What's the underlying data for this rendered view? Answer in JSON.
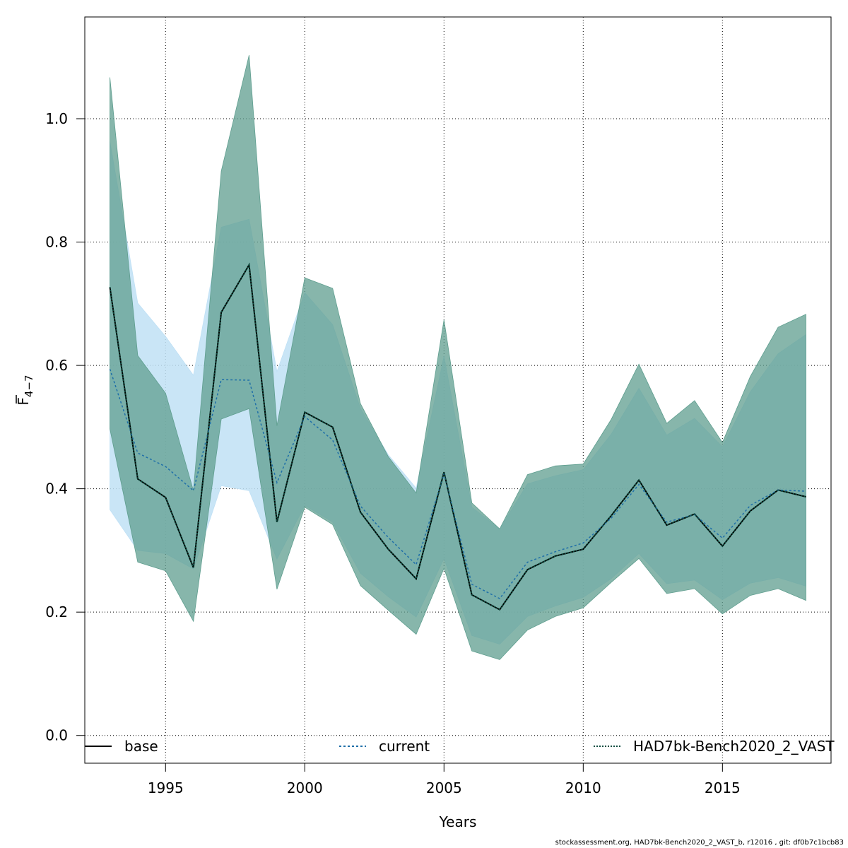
{
  "chart_data": {
    "type": "line",
    "xlabel": "Years",
    "ylabel_main": "F",
    "ylabel_sub": "4−7",
    "xlim": [
      1992.1,
      2018.9
    ],
    "ylim": [
      -0.045,
      1.165
    ],
    "xticks": [
      1995,
      2000,
      2005,
      2010,
      2015
    ],
    "yticks": [
      0.0,
      0.2,
      0.4,
      0.6,
      0.8,
      1.0
    ],
    "ytick_labels": [
      "0.0",
      "0.2",
      "0.4",
      "0.6",
      "0.8",
      "1.0"
    ],
    "grid": true,
    "legend_position": "bottom",
    "x": [
      1993,
      1994,
      1995,
      1996,
      1997,
      1998,
      1999,
      2000,
      2001,
      2002,
      2003,
      2004,
      2005,
      2006,
      2007,
      2008,
      2009,
      2010,
      2011,
      2012,
      2013,
      2014,
      2015,
      2016,
      2017,
      2018
    ],
    "series": [
      {
        "name": "base",
        "color": "#000000",
        "fill": "#5f9e8f",
        "values": [
          0.727,
          0.416,
          0.386,
          0.272,
          0.686,
          0.763,
          0.346,
          0.524,
          0.5,
          0.362,
          0.302,
          0.254,
          0.427,
          0.228,
          0.204,
          0.269,
          0.291,
          0.302,
          0.356,
          0.414,
          0.341,
          0.359,
          0.307,
          0.364,
          0.398,
          0.387
        ],
        "lower": [
          0.497,
          0.281,
          0.267,
          0.185,
          0.513,
          0.53,
          0.237,
          0.37,
          0.342,
          0.243,
          0.203,
          0.164,
          0.271,
          0.137,
          0.123,
          0.171,
          0.193,
          0.207,
          0.248,
          0.287,
          0.23,
          0.238,
          0.197,
          0.227,
          0.238,
          0.219
        ],
        "upper": [
          1.067,
          0.616,
          0.555,
          0.397,
          0.915,
          1.103,
          0.502,
          0.742,
          0.725,
          0.538,
          0.452,
          0.393,
          0.674,
          0.377,
          0.335,
          0.423,
          0.437,
          0.44,
          0.512,
          0.602,
          0.506,
          0.543,
          0.475,
          0.582,
          0.662,
          0.683
        ]
      },
      {
        "name": "current",
        "color": "#1f6fa8",
        "fill": "#bfe0f5",
        "values": [
          0.594,
          0.458,
          0.436,
          0.397,
          0.577,
          0.576,
          0.41,
          0.517,
          0.479,
          0.372,
          0.321,
          0.277,
          0.424,
          0.245,
          0.222,
          0.281,
          0.298,
          0.312,
          0.352,
          0.407,
          0.346,
          0.358,
          0.32,
          0.373,
          0.398,
          0.396
        ],
        "lower": [
          0.366,
          0.3,
          0.295,
          0.27,
          0.405,
          0.397,
          0.286,
          0.373,
          0.346,
          0.263,
          0.225,
          0.192,
          0.287,
          0.162,
          0.148,
          0.193,
          0.21,
          0.224,
          0.254,
          0.295,
          0.246,
          0.252,
          0.22,
          0.247,
          0.256,
          0.242
        ],
        "upper": [
          0.963,
          0.701,
          0.647,
          0.584,
          0.824,
          0.837,
          0.59,
          0.718,
          0.666,
          0.53,
          0.455,
          0.401,
          0.615,
          0.37,
          0.335,
          0.408,
          0.421,
          0.431,
          0.488,
          0.563,
          0.487,
          0.514,
          0.468,
          0.557,
          0.619,
          0.65
        ]
      },
      {
        "name": "HAD7bk-Bench2020_2_VAST",
        "color": "#0d4d40",
        "fill": "#5aaeaf",
        "values": [
          0.727,
          0.416,
          0.386,
          0.272,
          0.686,
          0.763,
          0.346,
          0.524,
          0.5,
          0.362,
          0.302,
          0.254,
          0.427,
          0.228,
          0.204,
          0.269,
          0.291,
          0.302,
          0.356,
          0.414,
          0.341,
          0.359,
          0.307,
          0.364,
          0.398,
          0.387
        ]
      }
    ],
    "legend_labels": [
      "base",
      "current",
      "HAD7bk-Bench2020_2_VAST"
    ]
  },
  "footer": "stockassessment.org, HAD7bk-Bench2020_2_VAST_b, r12016 , git: df0b7c1bcb83"
}
